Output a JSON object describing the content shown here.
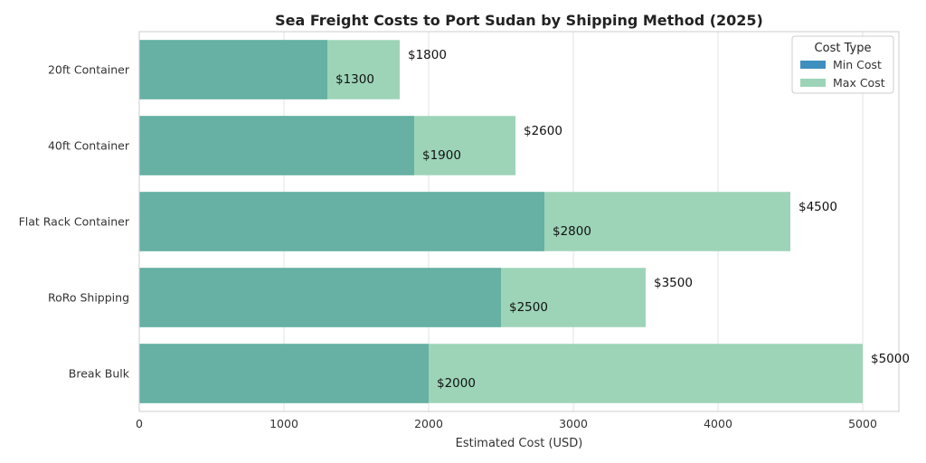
{
  "chart_data": {
    "type": "bar",
    "orientation": "horizontal",
    "title": "Sea Freight Costs to Port Sudan by Shipping Method (2025)",
    "xlabel": "Estimated Cost (USD)",
    "ylabel": "",
    "xlim": [
      0,
      5250
    ],
    "xticks": [
      0,
      1000,
      2000,
      3000,
      4000,
      5000
    ],
    "grid": true,
    "categories": [
      "20ft Container",
      "40ft Container",
      "Flat Rack Container",
      "RoRo Shipping",
      "Break Bulk"
    ],
    "series": [
      {
        "name": "Min Cost",
        "color": "#3f8fbf",
        "bar_color": "#66b0a4",
        "values": [
          1300,
          1900,
          2800,
          2500,
          2000
        ]
      },
      {
        "name": "Max Cost",
        "color": "#9dd4b8",
        "bar_color": "#9dd4b8",
        "values": [
          1800,
          2600,
          4500,
          3500,
          5000
        ]
      }
    ],
    "value_prefix": "$",
    "legend": {
      "title": "Cost Type",
      "placement": "top-right"
    }
  }
}
